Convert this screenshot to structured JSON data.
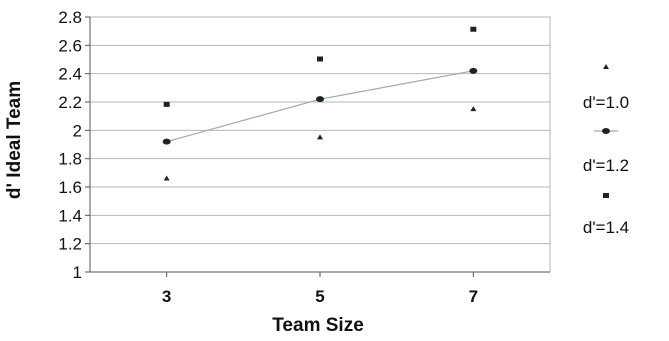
{
  "chart_data": {
    "type": "scatter",
    "title": "",
    "xlabel": "Team Size",
    "ylabel": "d' Ideal Team",
    "x": [
      3,
      5,
      7
    ],
    "xlim": [
      2,
      8
    ],
    "ylim": [
      1,
      2.8
    ],
    "y_ticks": [
      "1",
      "1.2",
      "1.4",
      "1.6",
      "1.8",
      "2",
      "2.2",
      "2.4",
      "2.6",
      "2.8"
    ],
    "x_ticks": [
      "3",
      "5",
      "7"
    ],
    "grid": true,
    "legend_position": "right",
    "series": [
      {
        "name": "d'=1.0",
        "marker": "triangle",
        "values": [
          1.66,
          1.95,
          2.15
        ],
        "line": false,
        "color": "#222222"
      },
      {
        "name": "d'=1.2",
        "marker": "circle",
        "values": [
          1.92,
          2.22,
          2.42
        ],
        "line": true,
        "color": "#222222",
        "line_color": "#9aaab8"
      },
      {
        "name": "d'=1.4",
        "marker": "square",
        "values": [
          2.18,
          2.5,
          2.71
        ],
        "line": false,
        "color": "#222222"
      }
    ]
  }
}
